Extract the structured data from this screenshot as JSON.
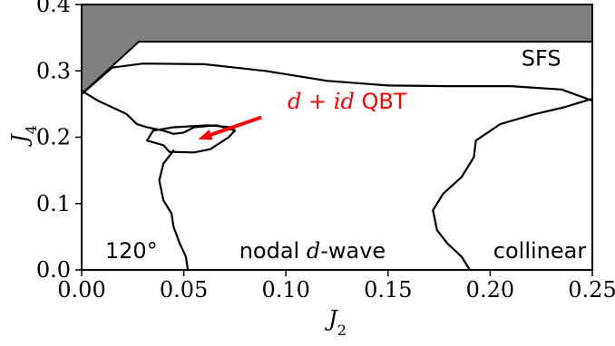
{
  "chart_data": {
    "type": "area",
    "title": "",
    "xlabel": "J",
    "xlabel_sub": "2",
    "ylabel": "J",
    "ylabel_sub": "4",
    "xlim": [
      0.0,
      0.25
    ],
    "ylim": [
      0.0,
      0.4
    ],
    "xticks": [
      "0.00",
      "0.05",
      "0.10",
      "0.15",
      "0.20",
      "0.25"
    ],
    "yticks": [
      "0.0",
      "0.1",
      "0.2",
      "0.3",
      "0.4"
    ],
    "grid": false,
    "excluded_region": {
      "fill": "#808080",
      "points": [
        [
          0.0,
          0.4
        ],
        [
          0.25,
          0.4
        ],
        [
          0.25,
          0.344
        ],
        [
          0.028,
          0.344
        ],
        [
          0.0,
          0.265
        ]
      ]
    },
    "boundaries": [
      {
        "name": "upper_phase_boundary",
        "points": [
          [
            0.0,
            0.265
          ],
          [
            0.015,
            0.305
          ],
          [
            0.03,
            0.311
          ],
          [
            0.06,
            0.31
          ],
          [
            0.09,
            0.3
          ],
          [
            0.12,
            0.285
          ],
          [
            0.15,
            0.278
          ],
          [
            0.18,
            0.277
          ],
          [
            0.21,
            0.277
          ],
          [
            0.235,
            0.272
          ],
          [
            0.25,
            0.255
          ]
        ]
      },
      {
        "name": "left_phase_boundary",
        "points": [
          [
            0.0,
            0.27
          ],
          [
            0.008,
            0.255
          ],
          [
            0.015,
            0.245
          ],
          [
            0.022,
            0.235
          ],
          [
            0.027,
            0.22
          ],
          [
            0.032,
            0.215
          ],
          [
            0.04,
            0.21
          ],
          [
            0.045,
            0.205
          ],
          [
            0.05,
            0.207
          ],
          [
            0.055,
            0.215
          ],
          [
            0.066,
            0.218
          ],
          [
            0.075,
            0.21
          ]
        ]
      },
      {
        "name": "pocket_boundary",
        "points": [
          [
            0.035,
            0.21
          ],
          [
            0.032,
            0.195
          ],
          [
            0.04,
            0.188
          ],
          [
            0.043,
            0.178
          ],
          [
            0.055,
            0.177
          ],
          [
            0.063,
            0.182
          ],
          [
            0.072,
            0.2
          ],
          [
            0.075,
            0.21
          ],
          [
            0.073,
            0.215
          ],
          [
            0.062,
            0.218
          ],
          [
            0.045,
            0.215
          ],
          [
            0.035,
            0.21
          ]
        ]
      },
      {
        "name": "nodal_boundary",
        "points": [
          [
            0.045,
            0.18
          ],
          [
            0.04,
            0.16
          ],
          [
            0.038,
            0.135
          ],
          [
            0.04,
            0.105
          ],
          [
            0.044,
            0.085
          ],
          [
            0.045,
            0.065
          ],
          [
            0.048,
            0.04
          ],
          [
            0.051,
            0.02
          ],
          [
            0.052,
            0.0
          ]
        ]
      },
      {
        "name": "collinear_boundary",
        "points": [
          [
            0.25,
            0.258
          ],
          [
            0.236,
            0.245
          ],
          [
            0.222,
            0.235
          ],
          [
            0.205,
            0.22
          ],
          [
            0.193,
            0.195
          ],
          [
            0.192,
            0.17
          ],
          [
            0.186,
            0.14
          ],
          [
            0.177,
            0.115
          ],
          [
            0.172,
            0.09
          ],
          [
            0.174,
            0.06
          ],
          [
            0.179,
            0.04
          ],
          [
            0.186,
            0.02
          ],
          [
            0.19,
            0.0
          ]
        ]
      }
    ],
    "arrow": {
      "from": [
        0.088,
        0.23
      ],
      "to": [
        0.057,
        0.197
      ],
      "color": "#ff0000"
    },
    "annotations": [
      {
        "name": "sfs",
        "text": "SFS",
        "x": 0.225,
        "y": 0.308,
        "anchor": "middle",
        "color": "#000000"
      },
      {
        "name": "qbt",
        "text": "d + id QBT",
        "x": 0.13,
        "y": 0.243,
        "anchor": "middle",
        "color": "#ff0000"
      },
      {
        "name": "120",
        "text": "120°",
        "x": 0.0115,
        "y": 0.018,
        "anchor": "start",
        "color": "#000000"
      },
      {
        "name": "nodal",
        "text": "nodal d-wave",
        "x": 0.113,
        "y": 0.018,
        "anchor": "middle",
        "color": "#000000"
      },
      {
        "name": "collinear",
        "text": "collinear",
        "x": 0.247,
        "y": 0.018,
        "anchor": "end",
        "color": "#000000"
      }
    ]
  }
}
